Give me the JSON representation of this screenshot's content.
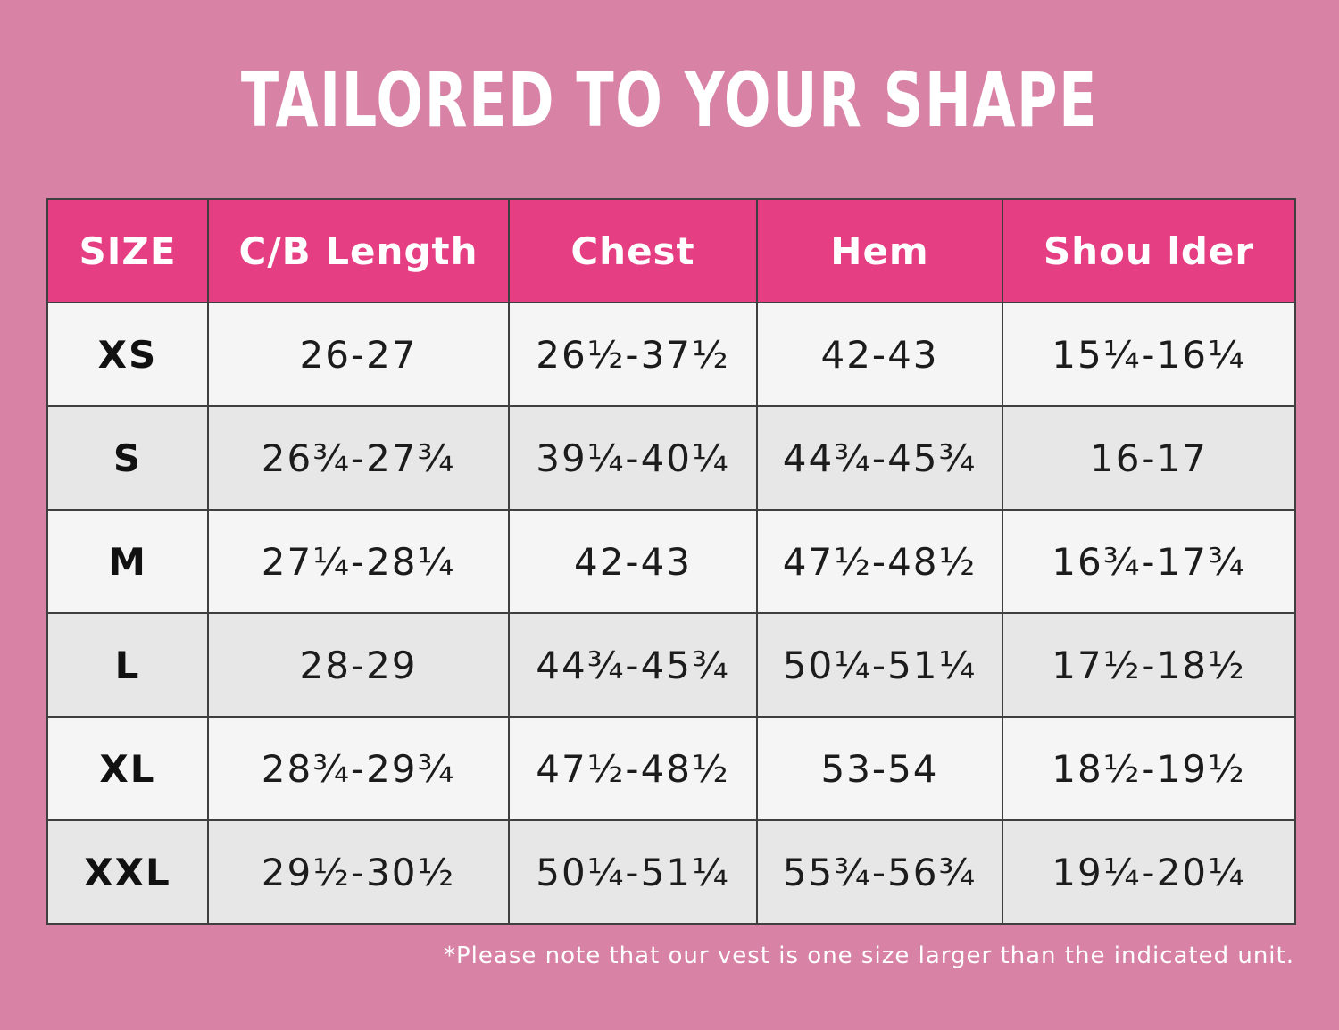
{
  "title": "TAILORED TO YOUR SHAPE",
  "colors": {
    "background": "#d883a6",
    "header": "#e53e82",
    "row_light": "#f5f5f5",
    "row_dark": "#e7e7e7"
  },
  "table": {
    "headers": [
      "SIZE",
      "C/B Length",
      "Chest",
      "Hem",
      "Shou lder"
    ],
    "rows": [
      [
        "XS",
        "26-27",
        "26½-37½",
        "42-43",
        "15¼-16¼"
      ],
      [
        "S",
        "26¾-27¾",
        "39¼-40¼",
        "44¾-45¾",
        "16-17"
      ],
      [
        "M",
        "27¼-28¼",
        "42-43",
        "47½-48½",
        "16¾-17¾"
      ],
      [
        "L",
        "28-29",
        "44¾-45¾",
        "50¼-51¼",
        "17½-18½"
      ],
      [
        "XL",
        "28¾-29¾",
        "47½-48½",
        "53-54",
        "18½-19½"
      ],
      [
        "XXL",
        "29½-30½",
        "50¼-51¼",
        "55¾-56¾",
        "19¼-20¼"
      ]
    ]
  },
  "note": "*Please note that our vest is one size larger than the indicated unit."
}
